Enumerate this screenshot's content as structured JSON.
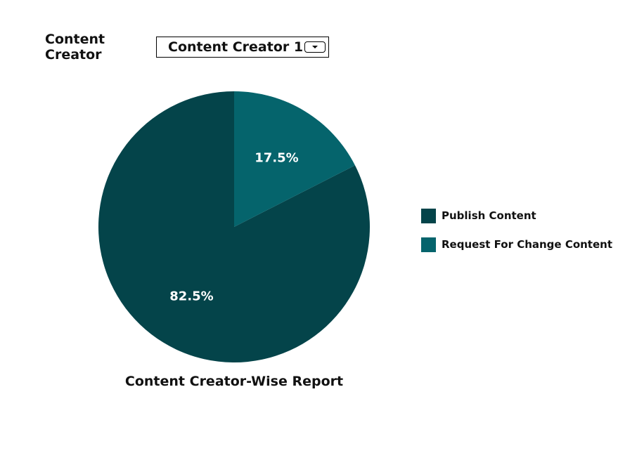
{
  "filter": {
    "label": "Content Creator",
    "selected": "Content Creator 1",
    "dropdown_icon": "chevron-down-icon"
  },
  "chart_data": {
    "type": "pie",
    "title": "Content Creator-Wise Report",
    "slices": [
      {
        "label": "Publish Content",
        "value": 82.5,
        "display": "82.5%",
        "color": "#04444A"
      },
      {
        "label": "Request For Change Content",
        "value": 17.5,
        "display": "17.5%",
        "color": "#05646C"
      }
    ],
    "legend_position": "right"
  }
}
